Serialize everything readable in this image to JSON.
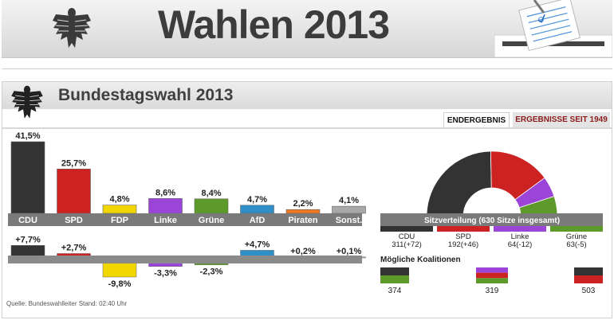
{
  "header": {
    "title": "Wahlen 2013"
  },
  "panel": {
    "title": "Bundestagswahl 2013",
    "tabs": [
      {
        "label": "ENDERGEBNIS",
        "active": true
      },
      {
        "label": "ERGEBNISSE SEIT 1949",
        "active": false
      }
    ]
  },
  "chart_data": [
    {
      "type": "bar",
      "categories": [
        "CDU",
        "SPD",
        "FDP",
        "Linke",
        "Grüne",
        "AfD",
        "Piraten",
        "Sonst."
      ],
      "values": [
        41.5,
        25.7,
        4.8,
        8.6,
        8.4,
        4.7,
        2.2,
        4.1
      ],
      "value_labels": [
        "41,5%",
        "25,7%",
        "4,8%",
        "8,6%",
        "8,4%",
        "4,7%",
        "2,2%",
        "4,1%"
      ],
      "colors": [
        "#333333",
        "#cc2222",
        "#f2d600",
        "#9b44d8",
        "#5d9a2a",
        "#2f8fc6",
        "#f07820",
        "#a8a8a8"
      ],
      "ylim": [
        0,
        45
      ]
    },
    {
      "type": "bar",
      "categories": [
        "CDU",
        "SPD",
        "FDP",
        "Linke",
        "Grüne",
        "AfD",
        "Piraten",
        "Sonst."
      ],
      "values": [
        7.7,
        2.7,
        -9.8,
        -3.3,
        -2.3,
        4.7,
        0.2,
        0.1
      ],
      "value_labels": [
        "+7,7%",
        "+2,7%",
        "-9,8%",
        "-3,3%",
        "-2,3%",
        "+4,7%",
        "+0,2%",
        "+0,1%"
      ],
      "colors": [
        "#333333",
        "#cc2222",
        "#f2d600",
        "#9b44d8",
        "#5d9a2a",
        "#2f8fc6",
        "#f07820",
        "#a8a8a8"
      ]
    },
    {
      "type": "pie",
      "title": "Sitzverteilung (630 Sitze insgesamt)",
      "categories": [
        "CDU",
        "SPD",
        "Linke",
        "Grüne"
      ],
      "values": [
        311,
        192,
        64,
        63
      ],
      "changes": [
        "311(+72)",
        "192(+46)",
        "64(-12)",
        "63(-5)"
      ],
      "colors": [
        "#333333",
        "#cc2222",
        "#9b44d8",
        "#5d9a2a"
      ]
    }
  ],
  "koalitionen": {
    "title": "Mögliche Koalitionen",
    "items": [
      {
        "seats": "374",
        "colors": [
          "#333333",
          "#5d9a2a"
        ]
      },
      {
        "seats": "319",
        "colors": [
          "#9b44d8",
          "#cc2222",
          "#5d9a2a"
        ]
      },
      {
        "seats": "503",
        "colors": [
          "#333333",
          "#cc2222"
        ]
      }
    ]
  },
  "footer": {
    "source": "Quelle: Bundeswahlleiter Stand: 02:40 Uhr"
  }
}
